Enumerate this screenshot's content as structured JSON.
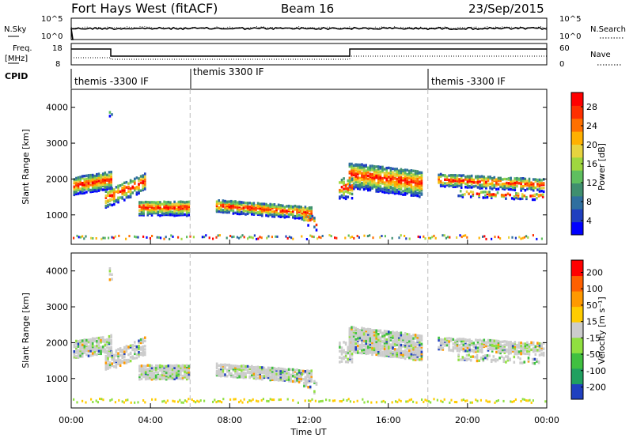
{
  "header": {
    "title": "Fort Hays West (fitACF)",
    "beam": "Beam 16",
    "date": "23/Sep/2015"
  },
  "top_panels": {
    "nsky_label": "N.Sky",
    "nsky_ticks": [
      "10^5",
      "10^0"
    ],
    "nsearch_label": "N.Search",
    "nsearch_ticks": [
      "10^5",
      "10^0"
    ],
    "freq_label_1": "Freq.",
    "freq_label_2": "[MHz]",
    "freq_ticks": [
      "18",
      "8"
    ],
    "nave_label": "Nave",
    "nave_ticks": [
      "60",
      "0"
    ],
    "cpid_label": "CPID",
    "cpid_segments": [
      {
        "label": "themis -3300 IF",
        "start_h": 0
      },
      {
        "label": "themis 3300 IF",
        "start_h": 6
      },
      {
        "label": "themis -3300 IF",
        "start_h": 18
      }
    ]
  },
  "chart_data": [
    {
      "type": "heatmap",
      "name": "power",
      "ylabel": "Slant Range [km]",
      "y_ticks": [
        "4000",
        "3000",
        "2000",
        "1000"
      ],
      "ylim": [
        180,
        4500
      ],
      "xlim_hours": [
        0,
        24
      ],
      "colorbar_label": "Power [dB]",
      "colorbar_ticks": [
        "28",
        "24",
        "20",
        "16",
        "12",
        "8",
        "4"
      ],
      "colorbar_colors": [
        "#0000ff",
        "#1f3fbf",
        "#2f6f9f",
        "#3f8f6f",
        "#5fbf5f",
        "#9fd73f",
        "#e7d33f",
        "#ffb000",
        "#ff7000",
        "#ff3000",
        "#ff0000"
      ]
    },
    {
      "type": "heatmap",
      "name": "velocity",
      "ylabel": "Slant Range [km]",
      "y_ticks": [
        "4000",
        "3000",
        "2000",
        "1000"
      ],
      "ylim": [
        180,
        4500
      ],
      "xlim_hours": [
        0,
        24
      ],
      "colorbar_label": "Velocity [m s⁻¹]",
      "colorbar_ticks": [
        "200",
        "100",
        "50",
        "15",
        "-15",
        "-50",
        "-100",
        "-200"
      ],
      "colorbar_colors": [
        "#2040c0",
        "#20a060",
        "#40c040",
        "#90e040",
        "#cccccc",
        "#ffcc00",
        "#ff9900",
        "#ff6000",
        "#ff0000"
      ]
    }
  ],
  "x_axis": {
    "ticks": [
      "00:00",
      "04:00",
      "08:00",
      "12:00",
      "16:00",
      "20:00",
      "00:00"
    ],
    "label": "Time UT"
  }
}
